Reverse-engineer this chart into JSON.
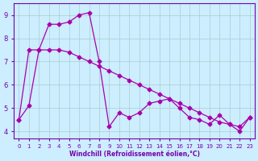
{
  "title": "",
  "xlabel": "Windchill (Refroidissement éolien,°C)",
  "ylabel": "",
  "bg_color": "#cceeff",
  "line_color": "#aa00aa",
  "grid_color": "#aacccc",
  "axis_color": "#7700aa",
  "xlim": [
    -0.5,
    23.5
  ],
  "ylim": [
    3.7,
    9.5
  ],
  "xticks": [
    0,
    1,
    2,
    3,
    4,
    5,
    6,
    7,
    8,
    9,
    10,
    11,
    12,
    13,
    14,
    15,
    16,
    17,
    18,
    19,
    20,
    21,
    22,
    23
  ],
  "yticks": [
    4,
    5,
    6,
    7,
    8,
    9
  ],
  "series1_x": [
    0,
    1,
    2,
    3,
    4,
    5,
    6,
    7,
    8,
    9,
    10,
    11,
    12,
    13,
    14,
    15,
    16,
    17,
    18,
    19,
    20,
    21,
    22,
    23
  ],
  "series1_y": [
    4.5,
    5.1,
    7.5,
    8.6,
    8.6,
    8.7,
    9.0,
    9.1,
    7.0,
    4.2,
    4.8,
    4.6,
    4.8,
    5.2,
    5.3,
    5.4,
    5.0,
    4.6,
    4.5,
    4.3,
    4.7,
    4.3,
    4.0,
    4.6
  ],
  "series2_x": [
    0,
    1,
    2,
    3,
    4,
    5,
    6,
    7,
    8,
    9,
    10,
    11,
    12,
    13,
    14,
    15,
    16,
    17,
    18,
    19,
    20,
    21,
    22,
    23
  ],
  "series2_y": [
    4.5,
    7.5,
    7.5,
    7.5,
    7.5,
    7.4,
    7.2,
    7.0,
    6.8,
    6.6,
    6.4,
    6.2,
    6.0,
    5.8,
    5.6,
    5.4,
    5.2,
    5.0,
    4.8,
    4.6,
    4.4,
    4.3,
    4.2,
    4.6
  ],
  "marker": "D",
  "marker_size": 2.5,
  "line_width": 0.9
}
